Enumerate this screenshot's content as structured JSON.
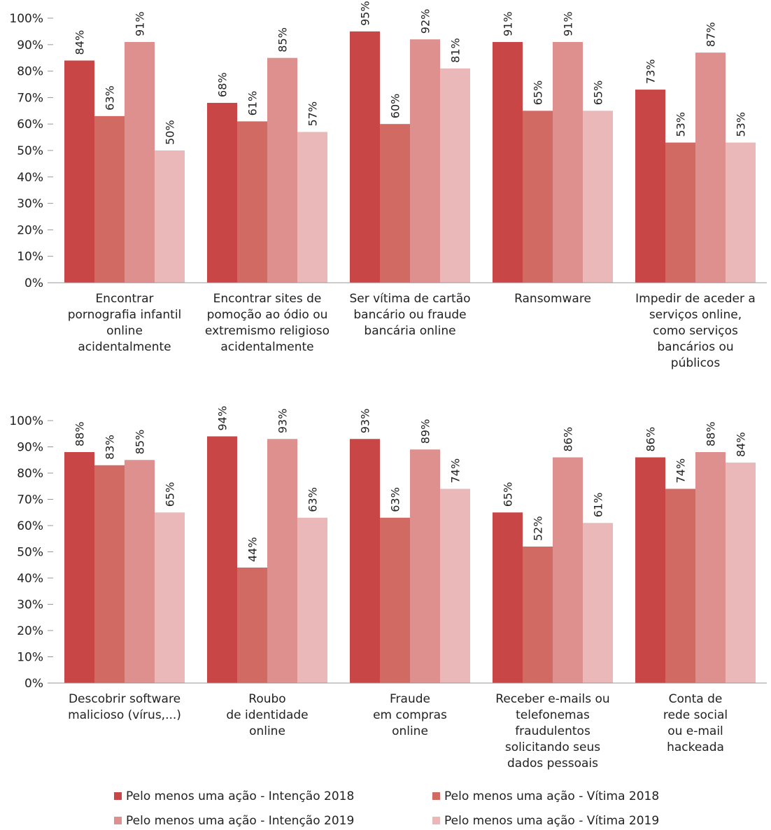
{
  "legend": [
    {
      "name": "Pelo menos uma ação - Intenção 2018",
      "color": "#c84646"
    },
    {
      "name": "Pelo menos uma ação - Vítima 2018",
      "color": "#d26a64"
    },
    {
      "name": "Pelo menos uma ação - Intenção 2019",
      "color": "#de908e"
    },
    {
      "name": "Pelo menos uma ação - Vítima 2019",
      "color": "#eab8b8"
    }
  ],
  "chart_data": [
    {
      "type": "bar",
      "categories": [
        "Encontrar\npornografia infantil\nonline\nacidentalmente",
        "Encontrar sites de\npomoção ao ódio ou\nextremismo religioso\nacidentalmente",
        "Ser vítima de cartão\nbancário ou fraude\nbancária online",
        "Ransomware",
        "Impedir de aceder a\nserviços online,\ncomo serviços\nbancários ou\npúblicos"
      ],
      "series": [
        {
          "values": [
            84,
            68,
            95,
            91,
            73
          ],
          "value_labels": [
            "84%",
            "68%",
            "95%",
            "91%",
            "73%"
          ]
        },
        {
          "values": [
            63,
            61,
            60,
            65,
            53
          ],
          "value_labels": [
            "63%",
            "61%",
            "60%",
            "65%",
            "53%"
          ]
        },
        {
          "values": [
            91,
            85,
            92,
            91,
            87
          ],
          "value_labels": [
            "91%",
            "85%",
            "92%",
            "91%",
            "87%"
          ]
        },
        {
          "values": [
            50,
            57,
            81,
            65,
            53
          ],
          "value_labels": [
            "50%",
            "57%",
            "81%",
            "65%",
            "53%"
          ]
        }
      ],
      "ylim": [
        0,
        100
      ],
      "yticks": [
        {
          "value": 0,
          "label": "0%"
        },
        {
          "value": 10,
          "label": "10%"
        },
        {
          "value": 20,
          "label": "20%"
        },
        {
          "value": 30,
          "label": "30%"
        },
        {
          "value": 40,
          "label": "40%"
        },
        {
          "value": 50,
          "label": "50%"
        },
        {
          "value": 60,
          "label": "60%"
        },
        {
          "value": 70,
          "label": "70%"
        },
        {
          "value": 80,
          "label": "80%"
        },
        {
          "value": 90,
          "label": "90%"
        },
        {
          "value": 100,
          "label": "100%"
        }
      ]
    },
    {
      "type": "bar",
      "categories": [
        "Descobrir software\nmalicioso (vírus,...)",
        "Roubo\nde identidade\nonline",
        "Fraude\nem compras\nonline",
        "Receber e-mails ou\ntelefonemas\nfraudulentos\nsolicitando seus\ndados pessoais",
        "Conta de\nrede social\nou e-mail\nhackeada"
      ],
      "series": [
        {
          "values": [
            88,
            94,
            93,
            65,
            86
          ],
          "value_labels": [
            "88%",
            "94%",
            "93%",
            "65%",
            "86%"
          ]
        },
        {
          "values": [
            83,
            44,
            63,
            52,
            74
          ],
          "value_labels": [
            "83%",
            "44%",
            "63%",
            "52%",
            "74%"
          ]
        },
        {
          "values": [
            85,
            93,
            89,
            86,
            88
          ],
          "value_labels": [
            "85%",
            "93%",
            "89%",
            "86%",
            "88%"
          ]
        },
        {
          "values": [
            65,
            63,
            74,
            61,
            84
          ],
          "value_labels": [
            "65%",
            "63%",
            "74%",
            "61%",
            "84%"
          ]
        }
      ],
      "ylim": [
        0,
        100
      ],
      "yticks": [
        {
          "value": 0,
          "label": "0%"
        },
        {
          "value": 10,
          "label": "10%"
        },
        {
          "value": 20,
          "label": "20%"
        },
        {
          "value": 30,
          "label": "30%"
        },
        {
          "value": 40,
          "label": "40%"
        },
        {
          "value": 50,
          "label": "50%"
        },
        {
          "value": 60,
          "label": "60%"
        },
        {
          "value": 70,
          "label": "70%"
        },
        {
          "value": 80,
          "label": "80%"
        },
        {
          "value": 90,
          "label": "90%"
        },
        {
          "value": 100,
          "label": "100%"
        }
      ]
    }
  ]
}
